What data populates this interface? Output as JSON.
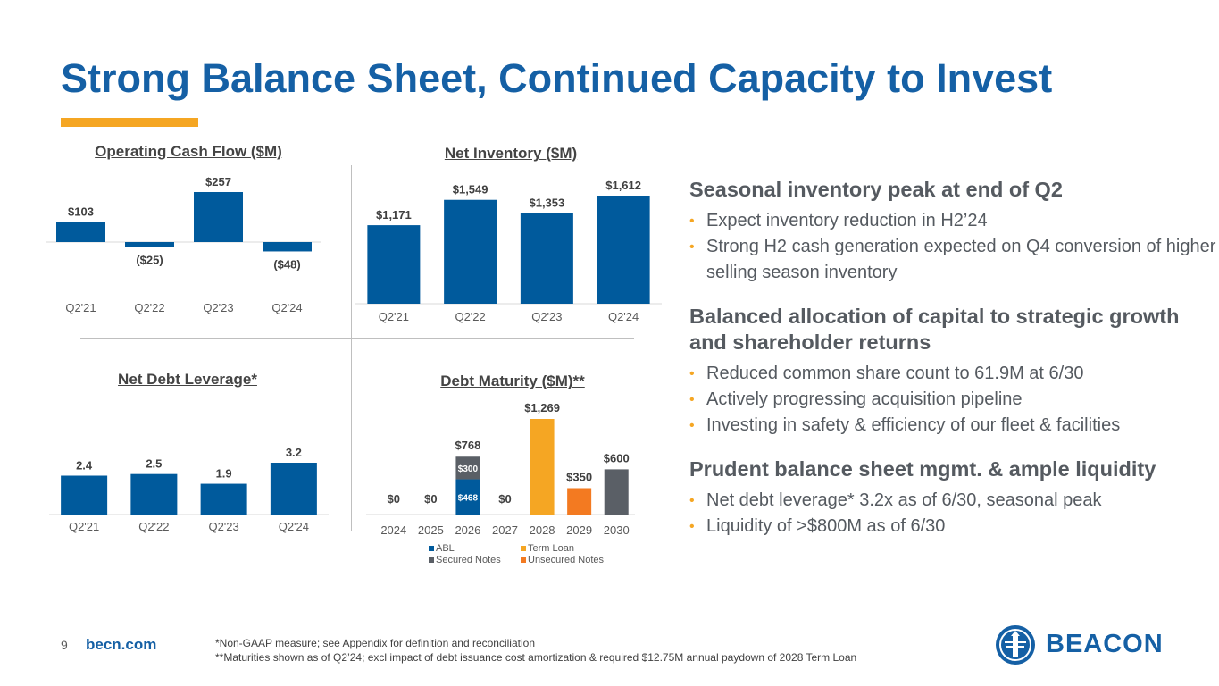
{
  "title": "Strong Balance Sheet, Continued Capacity to Invest",
  "colors": {
    "blue": "#005a9c",
    "gray": "#5a5f66",
    "yellow": "#f5a623",
    "orange": "#f37a21",
    "title_blue": "#1560a5"
  },
  "chart_data": [
    {
      "id": "ocf",
      "type": "bar",
      "title": "Operating Cash Flow ($M)",
      "categories": [
        "Q2'21",
        "Q2'22",
        "Q2'23",
        "Q2'24"
      ],
      "values": [
        103,
        -25,
        257,
        -48
      ],
      "labels": [
        "$103",
        "($25)",
        "$257",
        "($48)"
      ],
      "ylim": [
        -60,
        270
      ]
    },
    {
      "id": "inv",
      "type": "bar",
      "title": "Net Inventory ($M)",
      "categories": [
        "Q2'21",
        "Q2'22",
        "Q2'23",
        "Q2'24"
      ],
      "values": [
        1171,
        1549,
        1353,
        1612
      ],
      "labels": [
        "$1,171",
        "$1,549",
        "$1,353",
        "$1,612"
      ],
      "ylim": [
        0,
        1700
      ]
    },
    {
      "id": "lev",
      "type": "bar",
      "title": "Net Debt Leverage*",
      "categories": [
        "Q2'21",
        "Q2'22",
        "Q2'23",
        "Q2'24"
      ],
      "values": [
        2.4,
        2.5,
        1.9,
        3.2
      ],
      "labels": [
        "2.4",
        "2.5",
        "1.9",
        "3.2"
      ],
      "ylim": [
        0,
        3.5
      ]
    },
    {
      "id": "debt",
      "type": "bar",
      "stacked": true,
      "title": "Debt Maturity ($M)**",
      "categories": [
        "2024",
        "2025",
        "2026",
        "2027",
        "2028",
        "2029",
        "2030"
      ],
      "totals": [
        "$0",
        "$0",
        "$768",
        "$0",
        "$1,269",
        "$350",
        "$600"
      ],
      "series": [
        {
          "name": "ABL",
          "color": "#005a9c",
          "values": [
            0,
            0,
            468,
            0,
            0,
            0,
            0
          ],
          "inner_labels": [
            "",
            "",
            "$468",
            "",
            "",
            "",
            ""
          ]
        },
        {
          "name": "Secured Notes",
          "color": "#5a5f66",
          "values": [
            0,
            0,
            300,
            0,
            0,
            0,
            600
          ],
          "inner_labels": [
            "",
            "",
            "$300",
            "",
            "",
            "",
            ""
          ]
        },
        {
          "name": "Term Loan",
          "color": "#f5a623",
          "values": [
            0,
            0,
            0,
            0,
            1269,
            0,
            0
          ],
          "inner_labels": [
            "",
            "",
            "",
            "",
            "",
            "",
            ""
          ]
        },
        {
          "name": "Unsecured Notes",
          "color": "#f37a21",
          "values": [
            0,
            0,
            0,
            0,
            0,
            350,
            0
          ],
          "inner_labels": [
            "",
            "",
            "",
            "",
            "",
            "",
            ""
          ]
        }
      ],
      "ylim": [
        0,
        1300
      ],
      "legend": "bottom"
    }
  ],
  "sections": [
    {
      "heading": "Seasonal inventory peak at end of Q2",
      "bullets": [
        "Expect inventory reduction in H2’24",
        "Strong H2 cash generation expected on Q4 conversion of higher selling season inventory"
      ]
    },
    {
      "heading": "Balanced allocation of capital to strategic growth and shareholder returns",
      "bullets": [
        "Reduced common share count to 61.9M at 6/30",
        "Actively progressing acquisition pipeline",
        "Investing in safety & efficiency of our fleet & facilities"
      ]
    },
    {
      "heading": "Prudent balance sheet mgmt. & ample liquidity",
      "bullets": [
        "Net debt leverage* 3.2x as of 6/30, seasonal peak",
        "Liquidity of >$800M as of 6/30"
      ]
    }
  ],
  "footer": {
    "page": "9",
    "site": "becn.com",
    "note1": "*Non-GAAP measure; see Appendix for definition and reconciliation",
    "note2": "**Maturities shown as of Q2’24; excl impact of debt issuance cost amortization & required $12.75M annual paydown of 2028 Term Loan",
    "logo_text": "BEACON"
  }
}
